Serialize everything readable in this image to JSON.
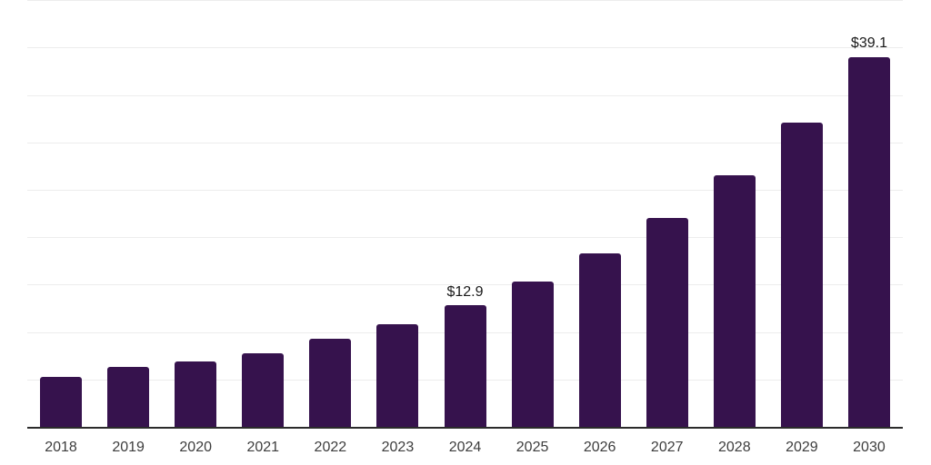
{
  "chart_data": {
    "type": "bar",
    "title": "",
    "xlabel": "",
    "ylabel": "",
    "categories": [
      "2018",
      "2019",
      "2020",
      "2021",
      "2022",
      "2023",
      "2024",
      "2025",
      "2026",
      "2027",
      "2028",
      "2029",
      "2030"
    ],
    "values": [
      5.4,
      6.4,
      7.0,
      7.9,
      9.4,
      10.9,
      12.9,
      15.4,
      18.4,
      22.1,
      26.6,
      32.2,
      39.1
    ],
    "point_labels": [
      "",
      "",
      "",
      "",
      "",
      "",
      "$12.9",
      "",
      "",
      "",
      "",
      "",
      "$39.1"
    ],
    "ylim": [
      0,
      45
    ],
    "gridline_step": 5,
    "grid": "horizontal",
    "legend": "none",
    "colors": {
      "bar": "#36124D",
      "point_label": "#1a1a1a",
      "tick_label": "#3d3d3d",
      "gridline": "#ededed",
      "axis_line": "#2b2b2b",
      "background": "#ffffff"
    }
  }
}
